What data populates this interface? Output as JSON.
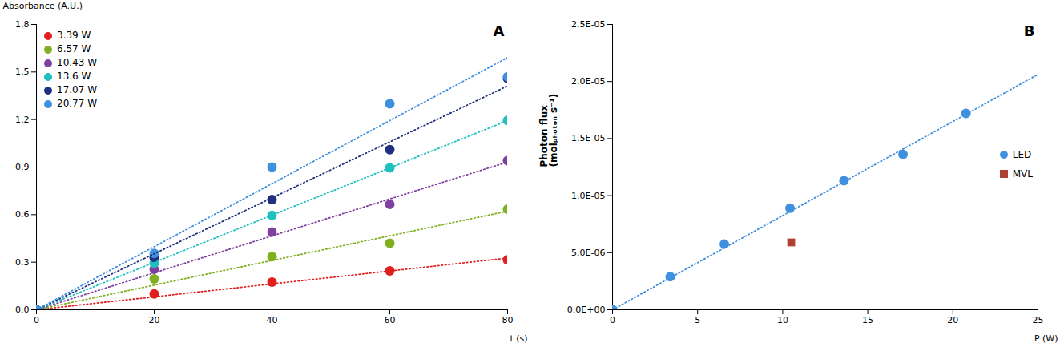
{
  "chart_data": [
    {
      "type": "scatter",
      "title": "A",
      "xlabel": "t (s)",
      "ylabel": "Absorbance (A.U.)",
      "xlim": [
        0,
        80
      ],
      "ylim": [
        0,
        1.8
      ],
      "xticks": [
        0,
        20,
        40,
        60,
        80
      ],
      "yticks": [
        {
          "value": 0,
          "label": "0.0"
        },
        0.3,
        0.6,
        0.9,
        1.2,
        1.5,
        1.8
      ],
      "legend": "upper left",
      "grid": false,
      "series": [
        {
          "name": "3.39 W",
          "color": "#e02020",
          "type": "scatter",
          "marker": "circle",
          "x": [
            0,
            20,
            40,
            60,
            80
          ],
          "values": [
            0.0,
            0.1,
            0.175,
            0.245,
            0.315
          ]
        },
        {
          "name": "6.57 W",
          "color": "#80b020",
          "type": "scatter",
          "marker": "circle",
          "x": [
            0,
            20,
            40,
            60,
            80
          ],
          "values": [
            0.0,
            0.195,
            0.335,
            0.42,
            0.635
          ]
        },
        {
          "name": "10.43 W",
          "color": "#8040a0",
          "type": "scatter",
          "marker": "circle",
          "x": [
            0,
            20,
            40,
            60,
            80
          ],
          "values": [
            0.0,
            0.255,
            0.49,
            0.665,
            0.94
          ]
        },
        {
          "name": "13.6 W",
          "color": "#20c0c0",
          "type": "scatter",
          "marker": "circle",
          "x": [
            0,
            20,
            40,
            60,
            80
          ],
          "values": [
            0.0,
            0.295,
            0.595,
            0.895,
            1.195
          ]
        },
        {
          "name": "17.07 W",
          "color": "#203080",
          "type": "scatter",
          "marker": "circle",
          "x": [
            0,
            20,
            40,
            60,
            80
          ],
          "values": [
            0.0,
            0.33,
            0.695,
            1.01,
            1.46
          ]
        },
        {
          "name": "20.77 W",
          "color": "#4090e0",
          "type": "scatter",
          "marker": "circle",
          "x": [
            0,
            20,
            40,
            60,
            80
          ],
          "values": [
            0.0,
            0.355,
            0.9,
            1.3,
            1.47
          ]
        },
        {
          "color": "#e02020",
          "type": "line",
          "line_style": "dotted",
          "x": [
            0,
            80
          ],
          "values": [
            0,
            0.326
          ]
        },
        {
          "color": "#80b020",
          "type": "line",
          "line_style": "dotted",
          "x": [
            0,
            80
          ],
          "values": [
            0,
            0.622
          ]
        },
        {
          "color": "#8040a0",
          "type": "line",
          "line_style": "dotted",
          "x": [
            0,
            80
          ],
          "values": [
            0,
            0.932
          ]
        },
        {
          "color": "#20c0c0",
          "type": "line",
          "line_style": "dotted",
          "x": [
            0,
            80
          ],
          "values": [
            0,
            1.193333333
          ]
        },
        {
          "color": "#203080",
          "type": "line",
          "line_style": "dotted",
          "x": [
            0,
            80
          ],
          "values": [
            0,
            1.412
          ]
        },
        {
          "color": "#4090e0",
          "type": "line",
          "line_style": "dotted",
          "x": [
            0,
            80
          ],
          "values": [
            0,
            1.591333333
          ]
        }
      ]
    },
    {
      "type": "scatter",
      "title": "B",
      "xlabel": "P (W)",
      "ylabel": "Photon flux\n(molₚₕₒₜₒₙ s⁻¹)",
      "xlim": [
        0,
        25
      ],
      "ylim": [
        0,
        2.5e-05
      ],
      "xticks": [
        0,
        5,
        10,
        15,
        20,
        25
      ],
      "yticks": [
        {
          "value": 0,
          "label": "0.0E+00"
        },
        {
          "value": 5e-06,
          "label": "5.0E-06"
        },
        {
          "value": 1e-05,
          "label": "1.0E-05"
        },
        {
          "value": 1.5e-05,
          "label": "1.5E-05"
        },
        {
          "value": 2e-05,
          "label": "2.0E-05"
        },
        {
          "value": 2.5e-05,
          "label": "2.5E-05"
        }
      ],
      "legend": "center right",
      "grid": false,
      "series": [
        {
          "color": "#4090e0",
          "type": "line",
          "line_style": "dotted",
          "x": [
            0,
            25
          ],
          "values": [
            0,
            2.062005796e-05
          ]
        },
        {
          "name": "LED",
          "color": "#4090e0",
          "type": "scatter",
          "marker": "circle",
          "x": [
            0,
            3.39,
            6.57,
            10.43,
            13.6,
            17.07,
            20.77
          ],
          "values": [
            0.0,
            2.9e-06,
            5.75e-06,
            8.9e-06,
            1.13e-05,
            1.36e-05,
            1.72e-05
          ]
        },
        {
          "name": "MVL",
          "color": "#b04030",
          "type": "scatter",
          "marker": "square",
          "x": [
            10.5
          ],
          "values": [
            5.9e-06
          ]
        }
      ]
    }
  ]
}
